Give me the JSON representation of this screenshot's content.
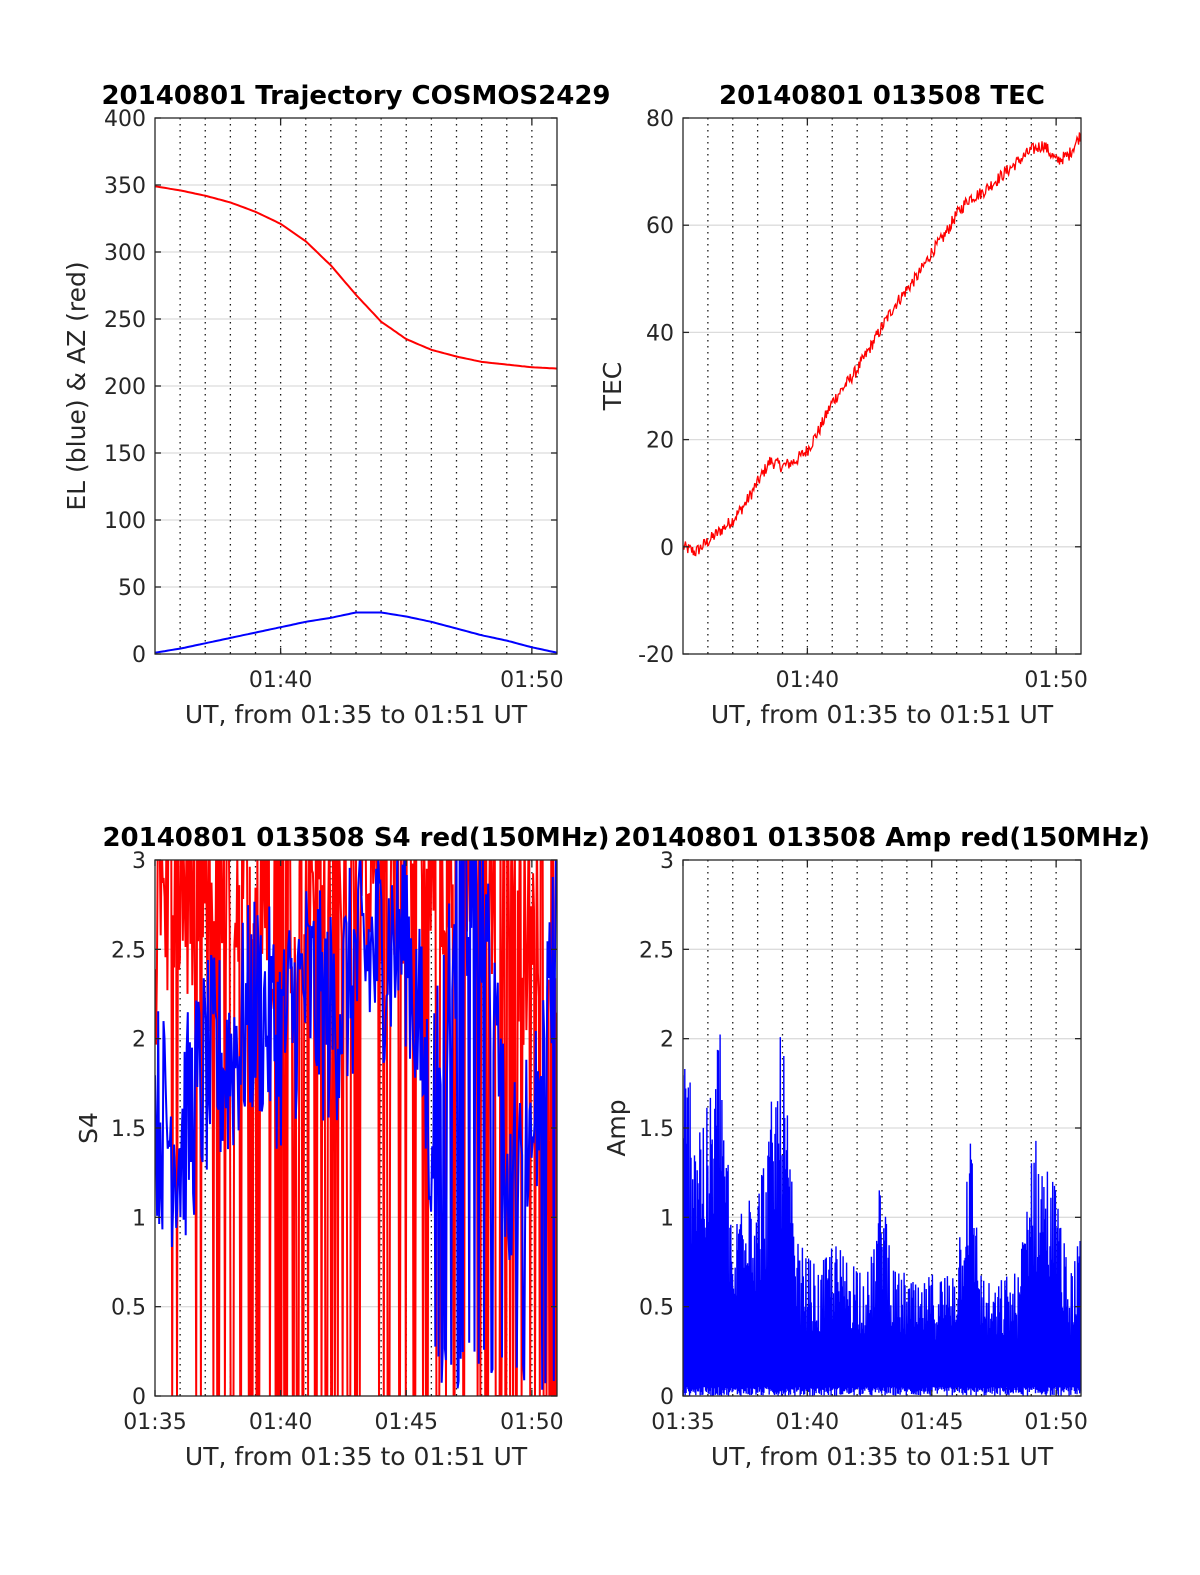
{
  "chart_data": [
    {
      "id": "trajectory",
      "type": "line",
      "title": "20140801 Trajectory COSMOS2429",
      "xlabel": "UT, from 01:35 to 01:51 UT",
      "ylabel": "EL (blue) & AZ (red)",
      "xlim": [
        "01:35",
        "01:51"
      ],
      "ylim": [
        0,
        400
      ],
      "yticks": [
        0,
        50,
        100,
        150,
        200,
        250,
        300,
        350,
        400
      ],
      "xticks": [
        "01:40",
        "01:50"
      ],
      "minor_xgrid_minutes": [
        "01:36",
        "01:37",
        "01:38",
        "01:39",
        "01:40",
        "01:41",
        "01:42",
        "01:43",
        "01:44",
        "01:45",
        "01:46",
        "01:47",
        "01:48",
        "01:49",
        "01:50"
      ],
      "grid": true,
      "series": [
        {
          "color": "#ff0000",
          "x": [
            "01:35",
            "01:36",
            "01:37",
            "01:38",
            "01:39",
            "01:40",
            "01:41",
            "01:42",
            "01:43",
            "01:44",
            "01:45",
            "01:46",
            "01:47",
            "01:48",
            "01:49",
            "01:50",
            "01:51"
          ],
          "values": [
            349,
            346,
            342,
            337,
            330,
            321,
            308,
            290,
            268,
            248,
            235,
            227,
            222,
            218,
            216,
            214,
            213
          ]
        },
        {
          "color": "#0000ff",
          "x": [
            "01:35",
            "01:36",
            "01:37",
            "01:38",
            "01:39",
            "01:40",
            "01:41",
            "01:42",
            "01:43",
            "01:44",
            "01:45",
            "01:46",
            "01:47",
            "01:48",
            "01:49",
            "01:50",
            "01:51"
          ],
          "values": [
            1,
            4,
            8,
            12,
            16,
            20,
            24,
            27,
            31,
            31,
            28,
            24,
            19,
            14,
            10,
            5,
            1
          ]
        }
      ]
    },
    {
      "id": "tec",
      "type": "line",
      "title": "20140801 013508 TEC",
      "xlabel": "UT, from 01:35 to 01:51 UT",
      "ylabel": "TEC",
      "xlim": [
        "01:35",
        "01:51"
      ],
      "ylim": [
        -20,
        80
      ],
      "yticks": [
        -20,
        0,
        20,
        40,
        60,
        80
      ],
      "xticks": [
        "01:40",
        "01:50"
      ],
      "minor_xgrid_minutes": [
        "01:36",
        "01:37",
        "01:38",
        "01:39",
        "01:40",
        "01:41",
        "01:42",
        "01:43",
        "01:44",
        "01:45",
        "01:46",
        "01:47",
        "01:48",
        "01:49",
        "01:50"
      ],
      "grid": true,
      "series": [
        {
          "color": "#ff0000",
          "x": [
            "01:35",
            "01:35:30",
            "01:36",
            "01:36:30",
            "01:37",
            "01:37:30",
            "01:38",
            "01:38:30",
            "01:39",
            "01:39:30",
            "01:40",
            "01:40:30",
            "01:41",
            "01:41:30",
            "01:42",
            "01:42:30",
            "01:43",
            "01:43:30",
            "01:44",
            "01:44:30",
            "01:45",
            "01:45:30",
            "01:46",
            "01:46:30",
            "01:47",
            "01:47:30",
            "01:48",
            "01:48:30",
            "01:49",
            "01:49:30",
            "01:50",
            "01:50:30",
            "01:51"
          ],
          "values": [
            0,
            -1,
            1,
            3,
            5,
            8,
            12,
            16,
            15,
            16,
            18,
            22,
            27,
            30,
            33,
            37,
            41,
            45,
            48,
            51,
            55,
            58,
            62,
            65,
            66,
            68,
            70,
            72,
            74,
            75,
            72,
            73,
            77
          ]
        }
      ]
    },
    {
      "id": "s4",
      "type": "line",
      "title": "20140801 013508 S4 red(150MHz)",
      "xlabel": "UT, from 01:35 to 01:51 UT",
      "ylabel": "S4",
      "xlim": [
        "01:35",
        "01:51"
      ],
      "ylim": [
        0,
        3
      ],
      "yticks": [
        0,
        0.5,
        1,
        1.5,
        2,
        2.5,
        3
      ],
      "xticks": [
        "01:35",
        "01:40",
        "01:45",
        "01:50"
      ],
      "minor_xgrid_minutes": [
        "01:36",
        "01:37",
        "01:38",
        "01:39",
        "01:40",
        "01:41",
        "01:42",
        "01:43",
        "01:44",
        "01:45",
        "01:46",
        "01:47",
        "01:48",
        "01:49",
        "01:50"
      ],
      "grid": true,
      "series": [
        {
          "color": "#ff0000",
          "note_values": "dense trace; red spans 0 to 3 between 01:37 and 01:51, concentrated 1.5 to 3 with drops to 0",
          "x": [
            "01:35",
            "01:36",
            "01:37",
            "01:38",
            "01:39",
            "01:40",
            "01:41",
            "01:42",
            "01:43",
            "01:44",
            "01:45",
            "01:46",
            "01:47",
            "01:48",
            "01:49",
            "01:50",
            "01:51"
          ],
          "values": [
            2.3,
            2.6,
            2.4,
            2.5,
            2.7,
            2.6,
            2.8,
            2.7,
            2.9,
            2.8,
            2.9,
            2.9,
            3.0,
            3.0,
            2.5,
            2.4,
            2.6
          ]
        },
        {
          "color": "#0000ff",
          "x": [
            "01:35",
            "01:36",
            "01:37",
            "01:38",
            "01:39",
            "01:40",
            "01:41",
            "01:42",
            "01:43",
            "01:44",
            "01:45",
            "01:46",
            "01:47",
            "01:48",
            "01:49",
            "01:50",
            "01:51"
          ],
          "values": [
            1.6,
            1.4,
            1.8,
            1.9,
            2.2,
            2.0,
            2.3,
            2.1,
            2.4,
            2.5,
            2.6,
            1.5,
            2.8,
            2.9,
            1.4,
            1.3,
            2.6
          ]
        }
      ]
    },
    {
      "id": "amp",
      "type": "line",
      "title": "20140801 013508 Amp red(150MHz)",
      "xlabel": "UT, from 01:35 to 01:51 UT",
      "ylabel": "Amp",
      "xlim": [
        "01:35",
        "01:51"
      ],
      "ylim": [
        0,
        3
      ],
      "yticks": [
        0,
        0.5,
        1,
        1.5,
        2,
        2.5,
        3
      ],
      "xticks": [
        "01:35",
        "01:40",
        "01:45",
        "01:50"
      ],
      "minor_xgrid_minutes": [
        "01:36",
        "01:37",
        "01:38",
        "01:39",
        "01:40",
        "01:41",
        "01:42",
        "01:43",
        "01:44",
        "01:45",
        "01:46",
        "01:47",
        "01:48",
        "01:49",
        "01:50"
      ],
      "grid": true,
      "series": [
        {
          "color": "#0000ff",
          "x": [
            "01:35",
            "01:35:30",
            "01:36",
            "01:36:30",
            "01:37",
            "01:37:30",
            "01:38",
            "01:38:30",
            "01:39",
            "01:39:30",
            "01:40",
            "01:40:30",
            "01:41",
            "01:41:30",
            "01:42",
            "01:42:30",
            "01:43",
            "01:43:30",
            "01:44",
            "01:44:30",
            "01:45",
            "01:45:30",
            "01:46",
            "01:46:30",
            "01:47",
            "01:47:30",
            "01:48",
            "01:48:30",
            "01:49",
            "01:49:30",
            "01:50",
            "01:50:30",
            "01:51"
          ],
          "values": [
            2.0,
            1.8,
            1.6,
            2.2,
            0.8,
            1.5,
            1.2,
            1.6,
            2.1,
            0.9,
            0.8,
            0.7,
            0.9,
            0.8,
            0.8,
            0.7,
            1.3,
            0.7,
            0.7,
            0.6,
            0.7,
            0.7,
            0.8,
            1.6,
            0.7,
            0.6,
            0.7,
            0.7,
            1.5,
            1.4,
            1.2,
            0.7,
            0.9
          ]
        }
      ]
    }
  ]
}
